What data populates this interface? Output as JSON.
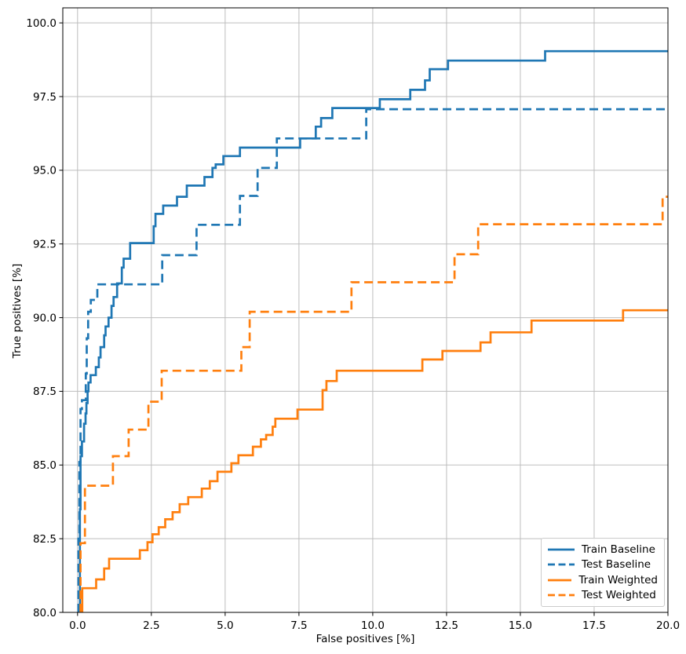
{
  "chart_data": {
    "type": "line",
    "subtype": "step-post-roc-curves",
    "title": "",
    "xlabel": "False positives [%]",
    "ylabel": "True positives [%]",
    "xlim": [
      -0.5,
      20
    ],
    "ylim": [
      80,
      100.51
    ],
    "grid": true,
    "grid_color": "#bdbdbd",
    "spine_color": "#000000",
    "legend": {
      "position": "lower right",
      "entries": [
        "Train Baseline",
        "Test Baseline",
        "Train Weighted",
        "Test Weighted"
      ]
    },
    "xticks": [
      0.0,
      2.5,
      5.0,
      7.5,
      10.0,
      12.5,
      15.0,
      17.5,
      20.0
    ],
    "yticks": [
      80.0,
      82.5,
      85.0,
      87.5,
      90.0,
      92.5,
      95.0,
      97.5,
      100.0
    ],
    "xtick_labels": [
      "0.0",
      "2.5",
      "5.0",
      "7.5",
      "10.0",
      "12.5",
      "15.0",
      "17.5",
      "20.0"
    ],
    "ytick_labels": [
      "80.0",
      "82.5",
      "85.0",
      "87.5",
      "90.0",
      "92.5",
      "95.0",
      "97.5",
      "100.0"
    ],
    "series": [
      {
        "name": "Train Baseline",
        "color": "#1f77b4",
        "style": "solid",
        "points": [
          [
            0.08,
            80
          ],
          [
            0.08,
            83.5
          ],
          [
            0.1,
            85.3
          ],
          [
            0.15,
            85.8
          ],
          [
            0.22,
            86.4
          ],
          [
            0.27,
            86.75
          ],
          [
            0.3,
            87.1
          ],
          [
            0.34,
            87.5
          ],
          [
            0.37,
            87.8
          ],
          [
            0.44,
            88.05
          ],
          [
            0.62,
            88.32
          ],
          [
            0.72,
            88.65
          ],
          [
            0.78,
            89.0
          ],
          [
            0.9,
            89.4
          ],
          [
            0.95,
            89.7
          ],
          [
            1.05,
            90.0
          ],
          [
            1.15,
            90.4
          ],
          [
            1.22,
            90.7
          ],
          [
            1.34,
            91.16
          ],
          [
            1.5,
            91.7
          ],
          [
            1.56,
            92.0
          ],
          [
            1.78,
            92.53
          ],
          [
            2.58,
            93.1
          ],
          [
            2.64,
            93.52
          ],
          [
            2.9,
            93.8
          ],
          [
            3.37,
            94.1
          ],
          [
            3.7,
            94.48
          ],
          [
            4.3,
            94.77
          ],
          [
            4.57,
            95.08
          ],
          [
            4.68,
            95.2
          ],
          [
            4.94,
            95.48
          ],
          [
            5.5,
            95.77
          ],
          [
            7.54,
            96.08
          ],
          [
            8.07,
            96.48
          ],
          [
            8.25,
            96.77
          ],
          [
            8.63,
            97.11
          ],
          [
            10.24,
            97.41
          ],
          [
            11.27,
            97.73
          ],
          [
            11.77,
            98.05
          ],
          [
            11.93,
            98.43
          ],
          [
            12.55,
            98.72
          ],
          [
            15.84,
            99.04
          ],
          [
            20,
            99.04
          ]
        ]
      },
      {
        "name": "Test Baseline",
        "color": "#1f77b4",
        "style": "dashed",
        "points": [
          [
            0.03,
            80
          ],
          [
            0.03,
            82.5
          ],
          [
            0.06,
            85.1
          ],
          [
            0.1,
            86.9
          ],
          [
            0.15,
            87.2
          ],
          [
            0.28,
            88.1
          ],
          [
            0.31,
            89.3
          ],
          [
            0.36,
            90.2
          ],
          [
            0.45,
            90.6
          ],
          [
            0.67,
            91.13
          ],
          [
            2.87,
            92.12
          ],
          [
            4.03,
            93.15
          ],
          [
            5.5,
            94.13
          ],
          [
            6.1,
            95.08
          ],
          [
            6.75,
            96.08
          ],
          [
            9.78,
            97.07
          ],
          [
            20,
            97.07
          ]
        ]
      },
      {
        "name": "Train Weighted",
        "color": "#ff7f0e",
        "style": "solid",
        "points": [
          [
            0.16,
            80
          ],
          [
            0.16,
            80.82
          ],
          [
            0.63,
            81.12
          ],
          [
            0.9,
            81.49
          ],
          [
            1.07,
            81.82
          ],
          [
            2.11,
            82.11
          ],
          [
            2.37,
            82.38
          ],
          [
            2.54,
            82.65
          ],
          [
            2.75,
            82.89
          ],
          [
            2.97,
            83.16
          ],
          [
            3.22,
            83.4
          ],
          [
            3.46,
            83.67
          ],
          [
            3.75,
            83.91
          ],
          [
            4.21,
            84.2
          ],
          [
            4.48,
            84.45
          ],
          [
            4.74,
            84.77
          ],
          [
            5.21,
            85.06
          ],
          [
            5.45,
            85.33
          ],
          [
            5.94,
            85.62
          ],
          [
            6.21,
            85.87
          ],
          [
            6.39,
            86.02
          ],
          [
            6.61,
            86.3
          ],
          [
            6.7,
            86.57
          ],
          [
            7.45,
            86.88
          ],
          [
            8.3,
            87.54
          ],
          [
            8.43,
            87.85
          ],
          [
            8.78,
            88.2
          ],
          [
            11.68,
            88.58
          ],
          [
            12.36,
            88.87
          ],
          [
            13.65,
            89.16
          ],
          [
            13.99,
            89.5
          ],
          [
            15.38,
            89.9
          ],
          [
            18.48,
            90.25
          ],
          [
            20,
            90.25
          ]
        ]
      },
      {
        "name": "Test Weighted",
        "color": "#ff7f0e",
        "style": "dashed",
        "points": [
          [
            0.1,
            80
          ],
          [
            0.1,
            82.35
          ],
          [
            0.25,
            84.3
          ],
          [
            1.2,
            85.3
          ],
          [
            1.73,
            86.2
          ],
          [
            2.4,
            87.15
          ],
          [
            2.85,
            88.2
          ],
          [
            5.55,
            89.0
          ],
          [
            5.83,
            90.2
          ],
          [
            9.28,
            91.2
          ],
          [
            12.77,
            92.15
          ],
          [
            13.57,
            93.17
          ],
          [
            19.82,
            94.1
          ],
          [
            20,
            94.1
          ]
        ]
      }
    ]
  }
}
